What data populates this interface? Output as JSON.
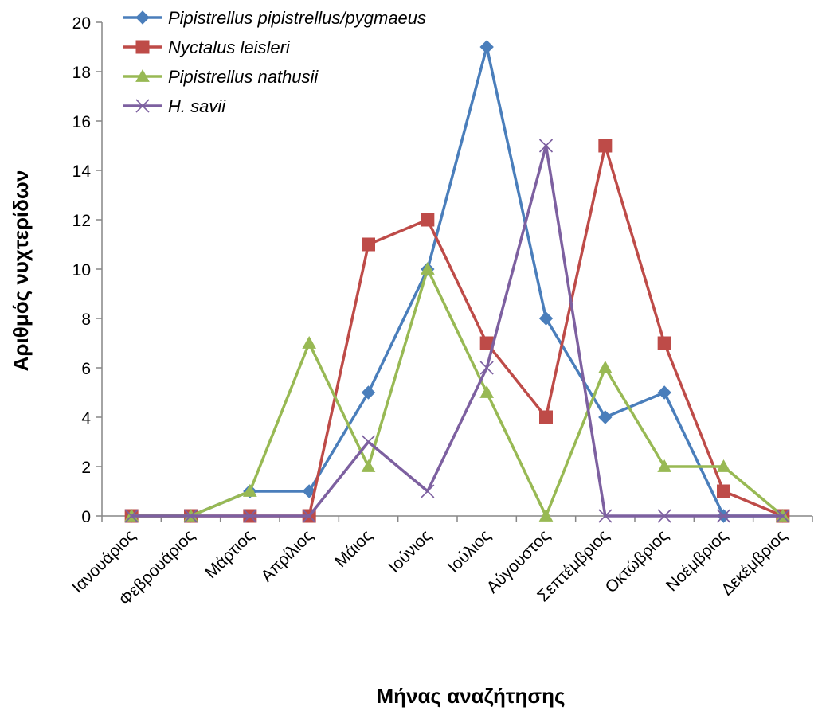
{
  "chart_data": {
    "type": "line",
    "title": "",
    "xlabel": "Μήνας αναζήτησης",
    "ylabel": "Αριθμός νυχτερίδων",
    "ylim": [
      0,
      20
    ],
    "ytick_step": 2,
    "grid": false,
    "legend_position": "top-left",
    "categories": [
      "Ιανουάριος",
      "Φεβρουάριος",
      "Μάρτιος",
      "Απρίλιος",
      "Μάιος",
      "Ιούνιος",
      "Ιούλιος",
      "Αύγουστος",
      "Σεπτέμβριος",
      "Οκτώβριος",
      "Νοέμβριος",
      "Δεκέμβριος"
    ],
    "series": [
      {
        "name": "Pipistrellus pipistrellus/pygmaeus",
        "color": "#4a7ebb",
        "marker": "diamond",
        "values": [
          0,
          0,
          1,
          1,
          5,
          10,
          19,
          8,
          4,
          5,
          0,
          0
        ]
      },
      {
        "name": "Nyctalus leisleri",
        "color": "#be4b48",
        "marker": "square",
        "values": [
          0,
          0,
          0,
          0,
          11,
          12,
          7,
          4,
          15,
          7,
          1,
          0
        ]
      },
      {
        "name": "Pipistrellus nathusii",
        "color": "#98b954",
        "marker": "triangle",
        "values": [
          0,
          0,
          1,
          7,
          2,
          10,
          5,
          0,
          6,
          2,
          2,
          0
        ]
      },
      {
        "name": "H. savii",
        "color": "#7d60a0",
        "marker": "x",
        "values": [
          0,
          0,
          0,
          0,
          3,
          1,
          6,
          15,
          0,
          0,
          0,
          0
        ]
      }
    ]
  }
}
